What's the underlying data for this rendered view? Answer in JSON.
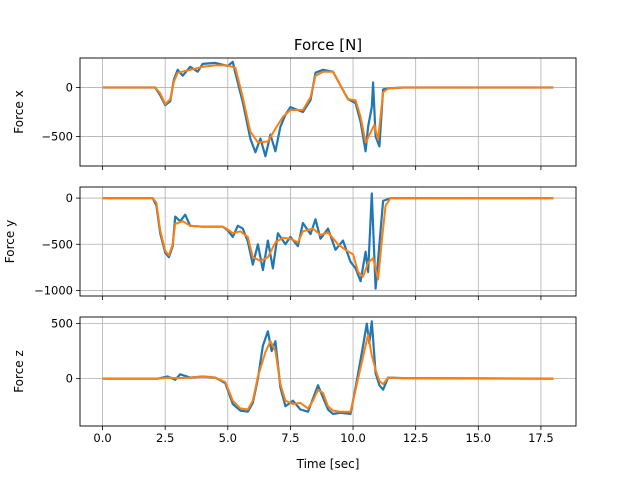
{
  "chart_data": {
    "type": "line",
    "title": "Force [N]",
    "xlabel": "Time [sec]",
    "xlim": [
      -0.9,
      18.9
    ],
    "xticks": [
      0.0,
      2.5,
      5.0,
      7.5,
      10.0,
      12.5,
      15.0,
      17.5
    ],
    "xtick_labels": [
      "0.0",
      "2.5",
      "5.0",
      "7.5",
      "10.0",
      "12.5",
      "15.0",
      "17.5"
    ],
    "grid": true,
    "colors": {
      "raw": "#1f77b4",
      "filtered": "#ff7f0e"
    },
    "panels": [
      {
        "ylabel": "Force x",
        "ylim": [
          -800,
          300
        ],
        "yticks": [
          0,
          -500
        ],
        "ytick_labels": [
          "0",
          "−500"
        ],
        "filtered": [
          [
            0,
            0
          ],
          [
            2.1,
            0
          ],
          [
            2.3,
            -60
          ],
          [
            2.5,
            -170
          ],
          [
            2.7,
            -120
          ],
          [
            2.85,
            60
          ],
          [
            3.0,
            150
          ],
          [
            3.5,
            180
          ],
          [
            4.0,
            210
          ],
          [
            4.5,
            225
          ],
          [
            5.0,
            225
          ],
          [
            5.3,
            200
          ],
          [
            5.6,
            -100
          ],
          [
            5.9,
            -450
          ],
          [
            6.2,
            -560
          ],
          [
            6.6,
            -550
          ],
          [
            6.9,
            -420
          ],
          [
            7.2,
            -300
          ],
          [
            7.5,
            -230
          ],
          [
            8.0,
            -230
          ],
          [
            8.3,
            -100
          ],
          [
            8.5,
            120
          ],
          [
            8.8,
            160
          ],
          [
            9.2,
            160
          ],
          [
            9.5,
            20
          ],
          [
            9.8,
            -120
          ],
          [
            10.1,
            -130
          ],
          [
            10.3,
            -300
          ],
          [
            10.5,
            -560
          ],
          [
            10.7,
            -460
          ],
          [
            10.85,
            -380
          ],
          [
            11.0,
            -530
          ],
          [
            11.2,
            -50
          ],
          [
            11.4,
            -10
          ],
          [
            12.0,
            0
          ],
          [
            18.0,
            0
          ]
        ],
        "raw": [
          [
            0,
            0
          ],
          [
            2.1,
            0
          ],
          [
            2.3,
            -80
          ],
          [
            2.5,
            -180
          ],
          [
            2.7,
            -140
          ],
          [
            2.85,
            80
          ],
          [
            3.0,
            180
          ],
          [
            3.2,
            120
          ],
          [
            3.5,
            210
          ],
          [
            3.8,
            160
          ],
          [
            4.0,
            240
          ],
          [
            4.5,
            250
          ],
          [
            5.0,
            220
          ],
          [
            5.2,
            260
          ],
          [
            5.3,
            150
          ],
          [
            5.6,
            -150
          ],
          [
            5.9,
            -520
          ],
          [
            6.1,
            -660
          ],
          [
            6.3,
            -520
          ],
          [
            6.5,
            -700
          ],
          [
            6.7,
            -480
          ],
          [
            6.9,
            -650
          ],
          [
            7.1,
            -400
          ],
          [
            7.3,
            -280
          ],
          [
            7.5,
            -200
          ],
          [
            8.0,
            -250
          ],
          [
            8.3,
            -130
          ],
          [
            8.5,
            150
          ],
          [
            8.8,
            180
          ],
          [
            9.2,
            160
          ],
          [
            9.5,
            20
          ],
          [
            9.8,
            -120
          ],
          [
            10.1,
            -160
          ],
          [
            10.3,
            -350
          ],
          [
            10.5,
            -650
          ],
          [
            10.6,
            -400
          ],
          [
            10.75,
            -200
          ],
          [
            10.8,
            50
          ],
          [
            10.9,
            -500
          ],
          [
            11.05,
            -600
          ],
          [
            11.2,
            -20
          ],
          [
            11.4,
            -10
          ],
          [
            12.0,
            0
          ],
          [
            18.0,
            0
          ]
        ]
      },
      {
        "ylabel": "Force y",
        "ylim": [
          -1060,
          120
        ],
        "yticks": [
          0,
          -500,
          -1000
        ],
        "ytick_labels": [
          "0",
          "−500",
          "−1000"
        ],
        "filtered": [
          [
            0,
            0
          ],
          [
            2.0,
            0
          ],
          [
            2.15,
            -50
          ],
          [
            2.3,
            -350
          ],
          [
            2.5,
            -570
          ],
          [
            2.65,
            -620
          ],
          [
            2.8,
            -500
          ],
          [
            2.9,
            -280
          ],
          [
            3.2,
            -250
          ],
          [
            3.5,
            -300
          ],
          [
            4.0,
            -310
          ],
          [
            4.8,
            -310
          ],
          [
            5.0,
            -340
          ],
          [
            5.2,
            -380
          ],
          [
            5.5,
            -360
          ],
          [
            5.8,
            -420
          ],
          [
            6.0,
            -640
          ],
          [
            6.3,
            -680
          ],
          [
            6.6,
            -640
          ],
          [
            6.9,
            -480
          ],
          [
            7.2,
            -430
          ],
          [
            7.5,
            -440
          ],
          [
            7.8,
            -480
          ],
          [
            8.0,
            -360
          ],
          [
            8.4,
            -330
          ],
          [
            8.7,
            -400
          ],
          [
            9.0,
            -370
          ],
          [
            9.4,
            -500
          ],
          [
            9.7,
            -560
          ],
          [
            10.0,
            -610
          ],
          [
            10.2,
            -800
          ],
          [
            10.4,
            -850
          ],
          [
            10.6,
            -700
          ],
          [
            10.8,
            -650
          ],
          [
            11.0,
            -880
          ],
          [
            11.15,
            -450
          ],
          [
            11.3,
            -80
          ],
          [
            11.5,
            0
          ],
          [
            18.0,
            0
          ]
        ],
        "raw": [
          [
            0,
            0
          ],
          [
            2.0,
            0
          ],
          [
            2.15,
            -80
          ],
          [
            2.3,
            -380
          ],
          [
            2.5,
            -590
          ],
          [
            2.65,
            -640
          ],
          [
            2.8,
            -520
          ],
          [
            2.9,
            -200
          ],
          [
            3.1,
            -250
          ],
          [
            3.3,
            -180
          ],
          [
            3.5,
            -300
          ],
          [
            4.0,
            -310
          ],
          [
            4.8,
            -310
          ],
          [
            5.0,
            -350
          ],
          [
            5.2,
            -420
          ],
          [
            5.4,
            -300
          ],
          [
            5.6,
            -330
          ],
          [
            5.8,
            -470
          ],
          [
            6.0,
            -720
          ],
          [
            6.2,
            -500
          ],
          [
            6.4,
            -780
          ],
          [
            6.6,
            -460
          ],
          [
            6.8,
            -760
          ],
          [
            7.0,
            -380
          ],
          [
            7.3,
            -500
          ],
          [
            7.5,
            -420
          ],
          [
            7.8,
            -520
          ],
          [
            8.0,
            -270
          ],
          [
            8.3,
            -390
          ],
          [
            8.5,
            -230
          ],
          [
            8.7,
            -440
          ],
          [
            9.0,
            -330
          ],
          [
            9.3,
            -560
          ],
          [
            9.6,
            -460
          ],
          [
            9.9,
            -690
          ],
          [
            10.1,
            -760
          ],
          [
            10.3,
            -900
          ],
          [
            10.5,
            -580
          ],
          [
            10.6,
            -800
          ],
          [
            10.75,
            50
          ],
          [
            10.9,
            -980
          ],
          [
            11.05,
            -500
          ],
          [
            11.2,
            -30
          ],
          [
            11.5,
            0
          ],
          [
            18.0,
            0
          ]
        ]
      },
      {
        "ylabel": "Force z",
        "ylim": [
          -430,
          560
        ],
        "yticks": [
          500,
          0
        ],
        "ytick_labels": [
          "500",
          "0"
        ],
        "filtered": [
          [
            0,
            0
          ],
          [
            2.2,
            0
          ],
          [
            2.6,
            10
          ],
          [
            3.0,
            5
          ],
          [
            3.5,
            10
          ],
          [
            4.0,
            20
          ],
          [
            4.5,
            10
          ],
          [
            4.9,
            -30
          ],
          [
            5.2,
            -200
          ],
          [
            5.5,
            -270
          ],
          [
            5.8,
            -280
          ],
          [
            6.0,
            -200
          ],
          [
            6.2,
            20
          ],
          [
            6.5,
            240
          ],
          [
            6.7,
            340
          ],
          [
            6.9,
            250
          ],
          [
            7.1,
            -50
          ],
          [
            7.3,
            -200
          ],
          [
            7.6,
            -230
          ],
          [
            7.9,
            -220
          ],
          [
            8.2,
            -270
          ],
          [
            8.4,
            -200
          ],
          [
            8.6,
            -100
          ],
          [
            8.8,
            -130
          ],
          [
            9.0,
            -250
          ],
          [
            9.2,
            -290
          ],
          [
            9.5,
            -300
          ],
          [
            9.9,
            -300
          ],
          [
            10.1,
            -100
          ],
          [
            10.4,
            200
          ],
          [
            10.6,
            400
          ],
          [
            10.75,
            210
          ],
          [
            10.9,
            80
          ],
          [
            11.05,
            -20
          ],
          [
            11.2,
            -50
          ],
          [
            11.4,
            10
          ],
          [
            12.0,
            5
          ],
          [
            18.0,
            0
          ]
        ],
        "raw": [
          [
            0,
            0
          ],
          [
            2.2,
            0
          ],
          [
            2.6,
            20
          ],
          [
            2.9,
            -10
          ],
          [
            3.1,
            40
          ],
          [
            3.5,
            10
          ],
          [
            4.0,
            20
          ],
          [
            4.5,
            10
          ],
          [
            4.9,
            -40
          ],
          [
            5.2,
            -230
          ],
          [
            5.5,
            -290
          ],
          [
            5.8,
            -300
          ],
          [
            6.0,
            -220
          ],
          [
            6.2,
            0
          ],
          [
            6.4,
            300
          ],
          [
            6.6,
            430
          ],
          [
            6.75,
            250
          ],
          [
            6.9,
            340
          ],
          [
            7.1,
            -80
          ],
          [
            7.3,
            -250
          ],
          [
            7.6,
            -200
          ],
          [
            7.9,
            -280
          ],
          [
            8.2,
            -300
          ],
          [
            8.4,
            -180
          ],
          [
            8.6,
            -60
          ],
          [
            8.8,
            -170
          ],
          [
            9.0,
            -280
          ],
          [
            9.2,
            -320
          ],
          [
            9.5,
            -310
          ],
          [
            9.9,
            -320
          ],
          [
            10.1,
            -80
          ],
          [
            10.4,
            300
          ],
          [
            10.55,
            500
          ],
          [
            10.65,
            320
          ],
          [
            10.75,
            520
          ],
          [
            10.9,
            50
          ],
          [
            11.05,
            -60
          ],
          [
            11.2,
            -100
          ],
          [
            11.4,
            10
          ],
          [
            12.0,
            5
          ],
          [
            18.0,
            0
          ]
        ]
      }
    ]
  }
}
